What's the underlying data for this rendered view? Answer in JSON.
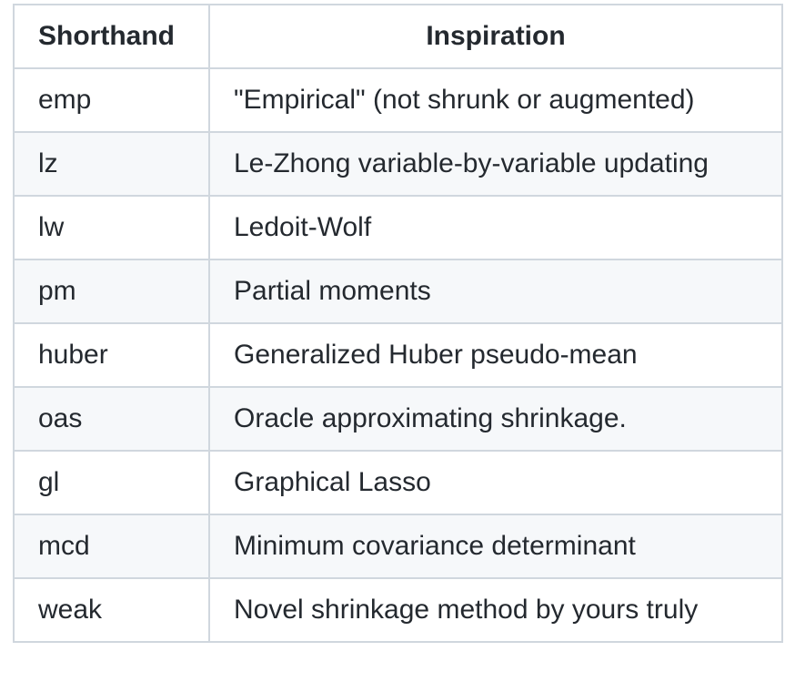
{
  "table": {
    "headers": {
      "shorthand": "Shorthand",
      "inspiration": "Inspiration"
    },
    "rows": [
      {
        "shorthand": "emp",
        "inspiration": "\"Empirical\" (not shrunk or augmented)"
      },
      {
        "shorthand": "lz",
        "inspiration": "Le-Zhong variable-by-variable updating"
      },
      {
        "shorthand": "lw",
        "inspiration": "Ledoit-Wolf"
      },
      {
        "shorthand": "pm",
        "inspiration": "Partial moments"
      },
      {
        "shorthand": "huber",
        "inspiration": "Generalized Huber pseudo-mean"
      },
      {
        "shorthand": "oas",
        "inspiration": "Oracle approximating shrinkage."
      },
      {
        "shorthand": "gl",
        "inspiration": "Graphical Lasso"
      },
      {
        "shorthand": "mcd",
        "inspiration": "Minimum covariance determinant"
      },
      {
        "shorthand": "weak",
        "inspiration": "Novel shrinkage method by yours truly"
      }
    ]
  },
  "colors": {
    "border": "#d0d7de",
    "stripe": "#f6f8fa",
    "text": "#24292f"
  }
}
